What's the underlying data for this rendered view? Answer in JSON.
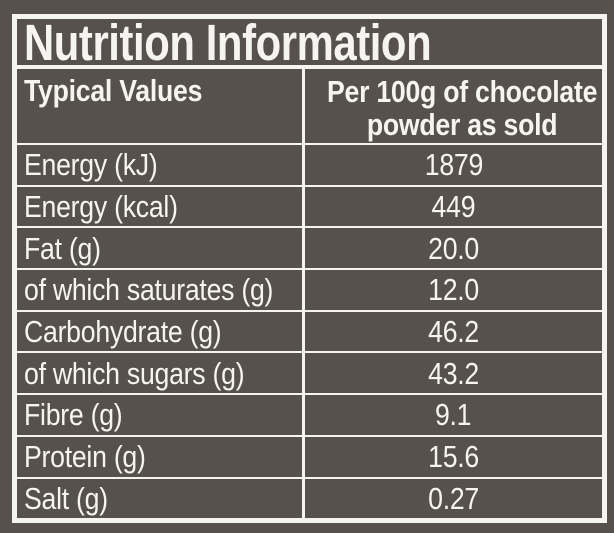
{
  "title": "Nutrition Information",
  "table": {
    "columns": {
      "left": "Typical Values",
      "right_lines": [
        "Per 100g of chocolate",
        "powder as sold"
      ]
    },
    "rows": [
      {
        "label": "Energy (kJ)",
        "value": "1879"
      },
      {
        "label": "Energy (kcal)",
        "value": "449"
      },
      {
        "label": "Fat (g)",
        "value": "20.0"
      },
      {
        "label": "of which saturates (g)",
        "value": "12.0"
      },
      {
        "label": "Carbohydrate (g)",
        "value": "46.2"
      },
      {
        "label": "of which sugars (g)",
        "value": "43.2"
      },
      {
        "label": "Fibre (g)",
        "value": "9.1"
      },
      {
        "label": "Protein (g)",
        "value": "15.6"
      },
      {
        "label": "Salt (g)",
        "value": "0.27"
      }
    ]
  },
  "colors": {
    "background": "#56514C",
    "foreground": "#F6F4F0"
  }
}
